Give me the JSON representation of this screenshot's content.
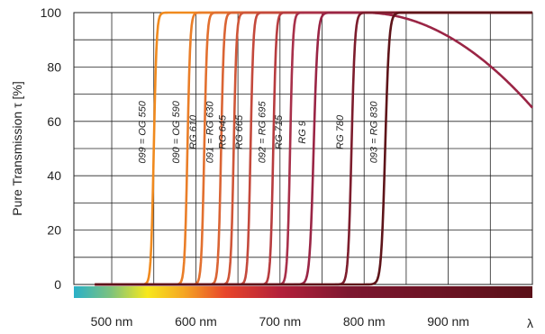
{
  "chart_data": {
    "type": "line",
    "title": "",
    "ylabel": "Pure Transmission τ [%]",
    "x_unit_symbol": "λ",
    "x_ticks": [
      "500 nm",
      "600 nm",
      "700 nm",
      "800 nm",
      "900 nm"
    ],
    "y_ticks": [
      "0",
      "20",
      "40",
      "60",
      "80",
      "100"
    ],
    "xlim": [
      455,
      1000
    ],
    "ylim": [
      0,
      100
    ],
    "grid": true,
    "series": [
      {
        "name": "099 = OG 550",
        "edge": 550,
        "width": 10,
        "color": "#f08a1e"
      },
      {
        "name": "090 = OG 590",
        "edge": 590,
        "width": 10,
        "color": "#ea7e28"
      },
      {
        "name": "RG 610",
        "edge": 610,
        "width": 10,
        "color": "#e2702f"
      },
      {
        "name": "091 = RG 630",
        "edge": 630,
        "width": 10,
        "color": "#da6434"
      },
      {
        "name": "RG 645",
        "edge": 645,
        "width": 10,
        "color": "#cf5638"
      },
      {
        "name": "RG 665",
        "edge": 665,
        "width": 10,
        "color": "#c4493c"
      },
      {
        "name": "092 = RG 695",
        "edge": 692,
        "width": 10,
        "color": "#b73c3f"
      },
      {
        "name": "RG 715",
        "edge": 712,
        "width": 10,
        "color": "#a8304a"
      },
      {
        "name": "RG 9",
        "edge": 740,
        "width": 14,
        "color": "#9a2545",
        "decline": true
      },
      {
        "name": "RG 780",
        "edge": 785,
        "width": 12,
        "color": "#7d1d2d"
      },
      {
        "name": "093 = RG 830",
        "edge": 825,
        "width": 14,
        "color": "#5e1419"
      }
    ]
  }
}
